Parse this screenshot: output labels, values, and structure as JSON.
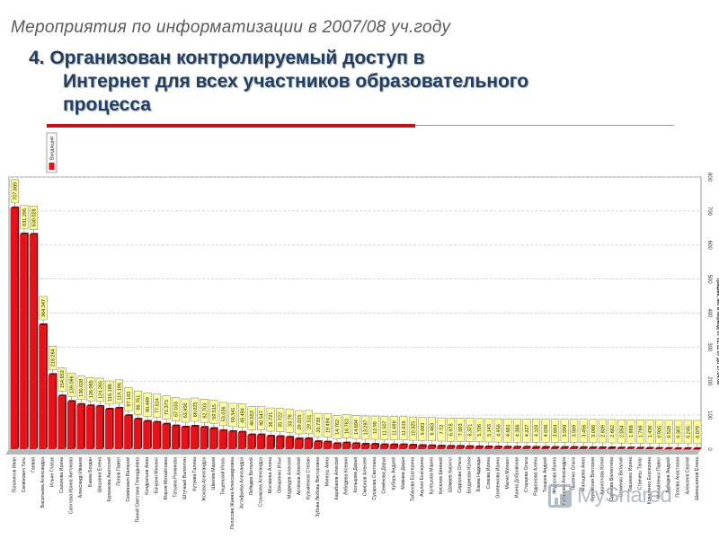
{
  "slide": {
    "title": "Мероприятия по информатизации  в 2007/08 уч.году",
    "heading_line1": "4. Организован  контролируемый доступ  в",
    "heading_line2": "Интернет для всех участников образовательного",
    "heading_line3": "процесса"
  },
  "watermark": "MyShared",
  "colors": {
    "bar": "#e3121b",
    "bar_dark": "#7a0505",
    "label_fill": "#ffff99",
    "title_gray": "#5a5a5a",
    "heading_navy": "#1f3f66",
    "rule_red": "#c0141c"
  },
  "chart_data": {
    "type": "bar",
    "legend": [
      "Входящий"
    ],
    "legend_position": "top-left",
    "ylabel": "Трафик, Мб в период от 01.11.07 до 17.04.08",
    "ylim": [
      0,
      800
    ],
    "yticks": [
      0,
      100,
      200,
      300,
      400,
      500,
      600,
      700,
      800
    ],
    "grid": true,
    "categories": [
      "Поначиков Иван",
      "Семёнович Тать",
      "Гаевая",
      "Васильева Александра",
      "Ильин Глазов",
      "Сазонова Ирина",
      "Сагитова Ирина Антонова",
      "Александр Иванов",
      "Баева Богдан",
      "Шишкина Елена",
      "Куренкова Анатолий",
      "Попов Павел",
      "Семёнович Валерий",
      "Пиний Светлана Геннадьевна",
      "Кондратьев Анна",
      "Бачурин Михаил",
      "Мария Михайловна",
      "Татьяна Романова",
      "Штучный Валентин",
      "Кутуева Галина",
      "Жохова Александра",
      "Шкилёв Мария",
      "Тищенский Игорь",
      "Полосова Жанна Александровна",
      "Астафьева Александра",
      "Лебедев Виталий",
      "Стрыжова Александра",
      "Москвина Алина",
      "Овчаренко Ильи",
      "Медведев Алексей",
      "Артёмов Алексей",
      "Кузьменков Степан",
      "Зубова Любовь Викторовна",
      "Мингуш Анна",
      "Карабанов Алексей",
      "Лебедева Ксения",
      "Кольцова Дарья",
      "Смирнов Алексей",
      "Сусарова Светлана",
      "Семёнова Дарья",
      "Кубарь Андрей",
      "Мамаев Дарья",
      "Табакова Екатерина",
      "Акулин Екатерина",
      "Кулешова Мария",
      "Киселев Евгений",
      "Шамаев Кирилл",
      "Сидорова Ольга",
      "Богданова Юлия",
      "Баева Надежда",
      "Сомова Ирина",
      "Осипенкова Ирина",
      "Малко Михаил",
      "Ирина Добровская",
      "Старцева Ольга",
      "Родионова Алёна",
      "Токарев Андрей",
      "Фёдорова Ирина",
      "Кабанова Александра",
      "Лысенко Ольга",
      "Мальцева Анна",
      "Куровская Виктория",
      "Кириллова Юлия",
      "Оденова Валентина",
      "Стасенко Виталий",
      "Пашенко Ирина",
      "Станчеш Тагир",
      "Коваленко Екатерина",
      "Михайленко Павел",
      "Лебедев Андрей",
      "Попова Анастасия",
      "Алексеев Сергей",
      "Шапошников Елена"
    ],
    "values": [
      707.889,
      631.296,
      630.028,
      364.347,
      218.264,
      154.953,
      139.096,
      130.028,
      126.065,
      124.265,
      116.186,
      119.196,
      97.183,
      86.761,
      80.449,
      77.514,
      72.373,
      67.033,
      63.456,
      66.025,
      62.703,
      59.515,
      53.036,
      50.341,
      48.484,
      40.553,
      40.547,
      36.721,
      35.722,
      33.78,
      29.025,
      29.511,
      20.739,
      19.494,
      14.762,
      16.763,
      14.694,
      13.297,
      12.99,
      11.507,
      11.698,
      11.616,
      10.325,
      9.083,
      8.463,
      7.72,
      6.978,
      7.003,
      6.371,
      5.706,
      5.143,
      4.956,
      4.661,
      4.386,
      4.227,
      4.118,
      4.036,
      3.664,
      3.599,
      3.569,
      3.456,
      3.088,
      2.809,
      2.662,
      2.054,
      1.988,
      1.789,
      1.436,
      0.905,
      0.528,
      0.307,
      0.245,
      0.079
    ]
  }
}
